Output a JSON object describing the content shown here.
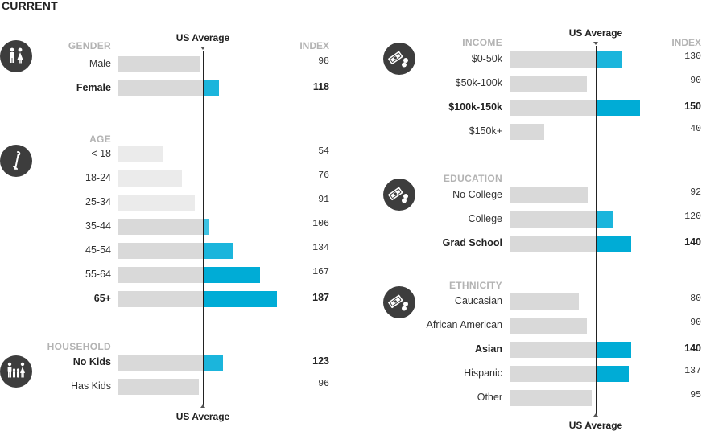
{
  "title": "CURRENT",
  "avg_label": "US Average",
  "index_header": "INDEX",
  "colors": {
    "baseline_bar": "#d9d9d9",
    "light_bar": "#ebebeb",
    "accent_1": "#3ec2e2",
    "accent_2": "#1bb5dc",
    "accent_3": "#00acd6",
    "icon_bg": "#3d3d3d"
  },
  "chart_data": [
    {
      "type": "bar",
      "title": "GENDER",
      "icon": "people-icon",
      "baseline": 100,
      "categories": [
        "Male",
        "Female"
      ],
      "values": [
        98,
        118
      ],
      "highlight": [
        "Female"
      ]
    },
    {
      "type": "bar",
      "title": "AGE",
      "icon": "cane-icon",
      "baseline": 100,
      "categories": [
        "< 18",
        "18-24",
        "25-34",
        "35-44",
        "45-54",
        "55-64",
        "65+"
      ],
      "values": [
        54,
        76,
        91,
        106,
        134,
        167,
        187
      ],
      "highlight": [
        "65+"
      ]
    },
    {
      "type": "bar",
      "title": "HOUSEHOLD",
      "icon": "family-icon",
      "baseline": 100,
      "categories": [
        "No Kids",
        "Has Kids"
      ],
      "values": [
        123,
        96
      ],
      "highlight": [
        "No Kids"
      ]
    },
    {
      "type": "bar",
      "title": "INCOME",
      "icon": "money-icon",
      "baseline": 100,
      "categories": [
        "$0-50k",
        "$50k-100k",
        "$100k-150k",
        "$150k+"
      ],
      "values": [
        130,
        90,
        150,
        40
      ],
      "highlight": [
        "$100k-150k"
      ]
    },
    {
      "type": "bar",
      "title": "EDUCATION",
      "icon": "money-icon",
      "baseline": 100,
      "categories": [
        "No College",
        "College",
        "Grad School"
      ],
      "values": [
        92,
        120,
        140
      ],
      "highlight": [
        "Grad School"
      ]
    },
    {
      "type": "bar",
      "title": "ETHNICITY",
      "icon": "money-icon",
      "baseline": 100,
      "categories": [
        "Caucasian",
        "African American",
        "Asian",
        "Hispanic",
        "Other"
      ],
      "values": [
        80,
        90,
        140,
        137,
        95
      ],
      "highlight": [
        "Asian"
      ]
    }
  ]
}
